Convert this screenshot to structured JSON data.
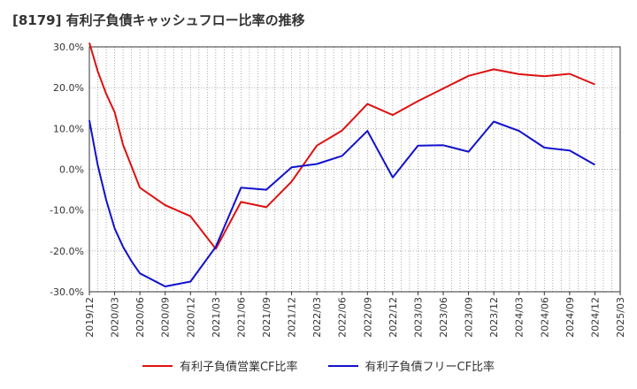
{
  "chart_data": {
    "type": "line",
    "title": "[8179]  有利子負債キャッシュフロー比率の推移",
    "ylim": [
      -30,
      30
    ],
    "y_ticks": [
      30,
      20,
      10,
      0,
      -10,
      -20,
      -30
    ],
    "y_tick_labels": [
      "30.0%",
      "20.0%",
      "10.0%",
      "0.0%",
      "-10.0%",
      "-20.0%",
      "-30.0%"
    ],
    "x_ticks": [
      "2019/12",
      "2020/03",
      "2020/06",
      "2020/09",
      "2020/12",
      "2021/03",
      "2021/06",
      "2021/09",
      "2021/12",
      "2022/03",
      "2022/06",
      "2022/09",
      "2022/12",
      "2023/03",
      "2023/06",
      "2023/09",
      "2023/12",
      "2024/03",
      "2024/06",
      "2024/09",
      "2024/12",
      "2025/03"
    ],
    "grid": true,
    "legend_position": "bottom",
    "series": [
      {
        "name": "有利子負債営業CF比率",
        "color": "#dd1111",
        "x": [
          "2019/12",
          "2020/01",
          "2020/02",
          "2020/03",
          "2020/04",
          "2020/06",
          "2020/09",
          "2020/12",
          "2021/03",
          "2021/06",
          "2021/09",
          "2021/12",
          "2022/03",
          "2022/06",
          "2022/09",
          "2022/12",
          "2023/03",
          "2023/06",
          "2023/09",
          "2023/12",
          "2024/03",
          "2024/06",
          "2024/09",
          "2024/12"
        ],
        "values": [
          31.0,
          24.0,
          18.5,
          14.0,
          6.0,
          -4.5,
          -8.8,
          -11.5,
          -19.5,
          -8.0,
          -9.3,
          -3.0,
          5.8,
          9.5,
          16.0,
          13.3,
          16.7,
          19.8,
          22.9,
          24.5,
          23.3,
          22.8,
          23.4,
          20.8
        ]
      },
      {
        "name": "有利子負債フリーCF比率",
        "color": "#1111cc",
        "x": [
          "2019/12",
          "2020/01",
          "2020/02",
          "2020/03",
          "2020/04",
          "2020/05",
          "2020/06",
          "2020/09",
          "2020/12",
          "2021/03",
          "2021/06",
          "2021/09",
          "2021/12",
          "2022/03",
          "2022/06",
          "2022/09",
          "2022/12",
          "2023/03",
          "2023/06",
          "2023/09",
          "2023/12",
          "2024/03",
          "2024/06",
          "2024/09",
          "2024/12"
        ],
        "values": [
          12.0,
          1.0,
          -7.5,
          -14.5,
          -19.0,
          -22.5,
          -25.5,
          -28.7,
          -27.5,
          -19.0,
          -4.5,
          -5.0,
          0.5,
          1.3,
          3.3,
          9.4,
          -2.0,
          5.8,
          5.9,
          4.3,
          11.7,
          9.4,
          5.3,
          4.6,
          1.1
        ]
      }
    ]
  }
}
